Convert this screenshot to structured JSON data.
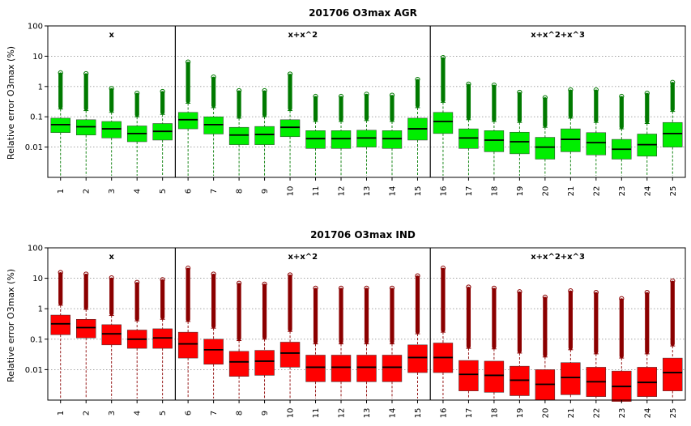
{
  "chart_data": [
    {
      "type": "boxplot",
      "title": "201706 O3max AGR",
      "ylabel": "Relative error O3max (%)",
      "yscale": "log",
      "ylim": [
        0.001,
        100
      ],
      "yticks": [
        {
          "v": 100,
          "t": "100"
        },
        {
          "v": 10,
          "t": "10"
        },
        {
          "v": 1,
          "t": "1"
        },
        {
          "v": 0.1,
          "t": "0.1"
        },
        {
          "v": 0.01,
          "t": "0.01"
        }
      ],
      "grid": true,
      "colors": {
        "box": "#00ee00",
        "outlier": "#007a00",
        "whisker": "#007a00"
      },
      "groups": [
        {
          "label": "x",
          "from": 1,
          "to": 5
        },
        {
          "label": "x+x^2",
          "from": 6,
          "to": 15
        },
        {
          "label": "x+x^2+x^3",
          "from": 16,
          "to": 25
        }
      ],
      "categories": [
        "1",
        "2",
        "3",
        "4",
        "5",
        "6",
        "7",
        "8",
        "9",
        "10",
        "11",
        "12",
        "13",
        "14",
        "15",
        "16",
        "17",
        "18",
        "19",
        "20",
        "21",
        "22",
        "23",
        "24",
        "25"
      ],
      "boxes": [
        {
          "q1": 0.03,
          "median": 0.055,
          "q3": 0.09,
          "whi": 0.18,
          "max": 3.3
        },
        {
          "q1": 0.025,
          "median": 0.047,
          "q3": 0.08,
          "whi": 0.16,
          "max": 3.1
        },
        {
          "q1": 0.02,
          "median": 0.04,
          "q3": 0.07,
          "whi": 0.14,
          "max": 1.0
        },
        {
          "q1": 0.015,
          "median": 0.028,
          "q3": 0.05,
          "whi": 0.1,
          "max": 0.7
        },
        {
          "q1": 0.017,
          "median": 0.033,
          "q3": 0.06,
          "whi": 0.12,
          "max": 0.8
        },
        {
          "q1": 0.04,
          "median": 0.08,
          "q3": 0.14,
          "whi": 0.28,
          "max": 7.5
        },
        {
          "q1": 0.027,
          "median": 0.055,
          "q3": 0.1,
          "whi": 0.2,
          "max": 2.4
        },
        {
          "q1": 0.012,
          "median": 0.025,
          "q3": 0.045,
          "whi": 0.09,
          "max": 0.85
        },
        {
          "q1": 0.012,
          "median": 0.026,
          "q3": 0.048,
          "whi": 0.1,
          "max": 0.85
        },
        {
          "q1": 0.022,
          "median": 0.045,
          "q3": 0.08,
          "whi": 0.16,
          "max": 3.0
        },
        {
          "q1": 0.009,
          "median": 0.019,
          "q3": 0.035,
          "whi": 0.07,
          "max": 0.55
        },
        {
          "q1": 0.009,
          "median": 0.019,
          "q3": 0.035,
          "whi": 0.07,
          "max": 0.55
        },
        {
          "q1": 0.01,
          "median": 0.02,
          "q3": 0.036,
          "whi": 0.075,
          "max": 0.65
        },
        {
          "q1": 0.009,
          "median": 0.019,
          "q3": 0.035,
          "whi": 0.07,
          "max": 0.6
        },
        {
          "q1": 0.017,
          "median": 0.04,
          "q3": 0.09,
          "whi": 0.2,
          "max": 2.0
        },
        {
          "q1": 0.028,
          "median": 0.07,
          "q3": 0.14,
          "whi": 0.3,
          "max": 10.5
        },
        {
          "q1": 0.009,
          "median": 0.02,
          "q3": 0.04,
          "whi": 0.08,
          "max": 1.4
        },
        {
          "q1": 0.007,
          "median": 0.017,
          "q3": 0.035,
          "whi": 0.07,
          "max": 1.3
        },
        {
          "q1": 0.006,
          "median": 0.015,
          "q3": 0.031,
          "whi": 0.065,
          "max": 0.75
        },
        {
          "q1": 0.004,
          "median": 0.01,
          "q3": 0.021,
          "whi": 0.045,
          "max": 0.5
        },
        {
          "q1": 0.007,
          "median": 0.018,
          "q3": 0.04,
          "whi": 0.09,
          "max": 0.9
        },
        {
          "q1": 0.0055,
          "median": 0.014,
          "q3": 0.03,
          "whi": 0.065,
          "max": 0.9
        },
        {
          "q1": 0.004,
          "median": 0.0085,
          "q3": 0.018,
          "whi": 0.04,
          "max": 0.55
        },
        {
          "q1": 0.005,
          "median": 0.012,
          "q3": 0.027,
          "whi": 0.06,
          "max": 0.7
        },
        {
          "q1": 0.01,
          "median": 0.028,
          "q3": 0.065,
          "whi": 0.15,
          "max": 1.6
        }
      ]
    },
    {
      "type": "boxplot",
      "title": "201706 O3max IND",
      "ylabel": "Relative error O3max (%)",
      "yscale": "log",
      "ylim": [
        0.001,
        100
      ],
      "yticks": [
        {
          "v": 100,
          "t": "100"
        },
        {
          "v": 10,
          "t": "10"
        },
        {
          "v": 1,
          "t": "1"
        },
        {
          "v": 0.1,
          "t": "0.1"
        },
        {
          "v": 0.01,
          "t": "0.01"
        }
      ],
      "grid": true,
      "colors": {
        "box": "#ff0000",
        "outlier": "#8b0000",
        "whisker": "#8b0000"
      },
      "groups": [
        {
          "label": "x",
          "from": 1,
          "to": 5
        },
        {
          "label": "x+x^2",
          "from": 6,
          "to": 15
        },
        {
          "label": "x+x^2+x^3",
          "from": 16,
          "to": 25
        }
      ],
      "categories": [
        "1",
        "2",
        "3",
        "4",
        "5",
        "6",
        "7",
        "8",
        "9",
        "10",
        "11",
        "12",
        "13",
        "14",
        "15",
        "16",
        "17",
        "18",
        "19",
        "20",
        "21",
        "22",
        "23",
        "24",
        "25"
      ],
      "boxes": [
        {
          "q1": 0.14,
          "median": 0.32,
          "q3": 0.62,
          "whi": 1.3,
          "max": 18
        },
        {
          "q1": 0.11,
          "median": 0.24,
          "q3": 0.45,
          "whi": 0.95,
          "max": 16
        },
        {
          "q1": 0.065,
          "median": 0.15,
          "q3": 0.3,
          "whi": 0.6,
          "max": 12
        },
        {
          "q1": 0.05,
          "median": 0.1,
          "q3": 0.2,
          "whi": 0.4,
          "max": 8.5
        },
        {
          "q1": 0.05,
          "median": 0.11,
          "q3": 0.22,
          "whi": 0.45,
          "max": 10.5
        },
        {
          "q1": 0.024,
          "median": 0.07,
          "q3": 0.17,
          "whi": 0.38,
          "max": 25
        },
        {
          "q1": 0.015,
          "median": 0.045,
          "q3": 0.1,
          "whi": 0.23,
          "max": 16
        },
        {
          "q1": 0.006,
          "median": 0.018,
          "q3": 0.04,
          "whi": 0.09,
          "max": 8
        },
        {
          "q1": 0.0065,
          "median": 0.019,
          "q3": 0.043,
          "whi": 0.1,
          "max": 7.5
        },
        {
          "q1": 0.012,
          "median": 0.035,
          "q3": 0.08,
          "whi": 0.18,
          "max": 15
        },
        {
          "q1": 0.004,
          "median": 0.012,
          "q3": 0.03,
          "whi": 0.07,
          "max": 5.5
        },
        {
          "q1": 0.004,
          "median": 0.012,
          "q3": 0.03,
          "whi": 0.07,
          "max": 5.5
        },
        {
          "q1": 0.004,
          "median": 0.012,
          "q3": 0.03,
          "whi": 0.07,
          "max": 5.5
        },
        {
          "q1": 0.004,
          "median": 0.012,
          "q3": 0.03,
          "whi": 0.07,
          "max": 5.5
        },
        {
          "q1": 0.008,
          "median": 0.025,
          "q3": 0.065,
          "whi": 0.15,
          "max": 14
        },
        {
          "q1": 0.008,
          "median": 0.025,
          "q3": 0.075,
          "whi": 0.17,
          "max": 25
        },
        {
          "q1": 0.002,
          "median": 0.007,
          "q3": 0.02,
          "whi": 0.05,
          "max": 6
        },
        {
          "q1": 0.0018,
          "median": 0.0065,
          "q3": 0.019,
          "whi": 0.048,
          "max": 5.5
        },
        {
          "q1": 0.0014,
          "median": 0.0045,
          "q3": 0.013,
          "whi": 0.035,
          "max": 4.2
        },
        {
          "q1": 0.001,
          "median": 0.0033,
          "q3": 0.01,
          "whi": 0.026,
          "max": 2.8
        },
        {
          "q1": 0.0015,
          "median": 0.0055,
          "q3": 0.017,
          "whi": 0.045,
          "max": 4.5
        },
        {
          "q1": 0.0013,
          "median": 0.004,
          "q3": 0.012,
          "whi": 0.033,
          "max": 4.0
        },
        {
          "q1": 0.0009,
          "median": 0.0028,
          "q3": 0.009,
          "whi": 0.024,
          "max": 2.5
        },
        {
          "q1": 0.0013,
          "median": 0.0038,
          "q3": 0.012,
          "whi": 0.033,
          "max": 4.0
        },
        {
          "q1": 0.002,
          "median": 0.008,
          "q3": 0.024,
          "whi": 0.06,
          "max": 9.5
        }
      ]
    }
  ]
}
